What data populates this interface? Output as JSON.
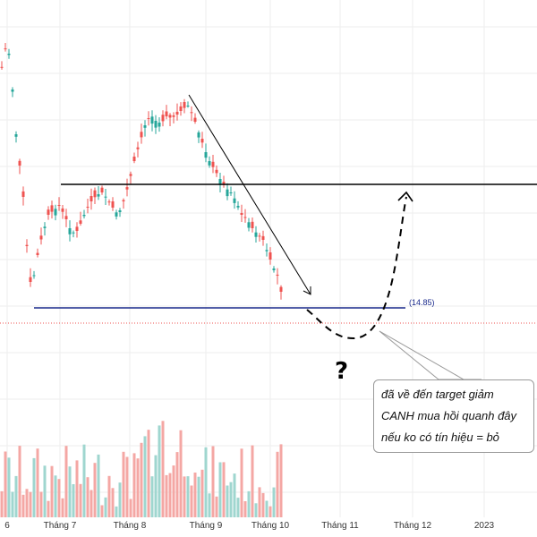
{
  "chart_data": {
    "type": "candlestick",
    "x_ticks": [
      "6",
      "Tháng 7",
      "Tháng 8",
      "Tháng 9",
      "Tháng 10",
      "Tháng 11",
      "Tháng 12",
      "2023"
    ],
    "support_level": 14.85,
    "support_label": "(14.85)",
    "question_mark": "?",
    "note_lines": [
      "đã về đến target giảm",
      "CANH mua hồi quanh đây",
      "nếu ko có tín hiệu = bỏ"
    ],
    "grid": true,
    "colors": {
      "up": "#26a69a",
      "down": "#ef5350",
      "volume_up": "#9fd6cf",
      "volume_down": "#f4a7a4",
      "support_line": "#1a2a8c",
      "resistance_line": "#000000",
      "current_price_line": "#ef5350",
      "grid": "#eeeeee"
    }
  }
}
